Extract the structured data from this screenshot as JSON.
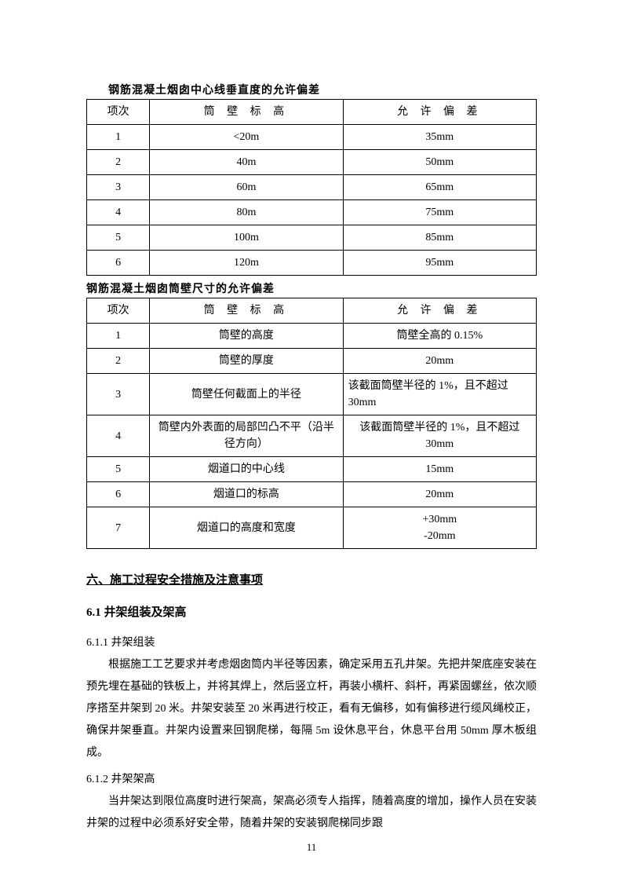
{
  "table1": {
    "title": "钢筋混凝土烟囱中心线垂直度的允许偏差",
    "columns": [
      "项次",
      "筒 壁 标 高",
      "允 许 偏 差"
    ],
    "rows": [
      [
        "1",
        "<20m",
        "35mm"
      ],
      [
        "2",
        "40m",
        "50mm"
      ],
      [
        "3",
        "60m",
        "65mm"
      ],
      [
        "4",
        "80m",
        "75mm"
      ],
      [
        "5",
        "100m",
        "85mm"
      ],
      [
        "6",
        "120m",
        "95mm"
      ]
    ],
    "col_widths_pct": [
      14,
      43,
      43
    ],
    "border_color": "#000000",
    "font_size_pt": 11
  },
  "table2": {
    "title": "钢筋混凝土烟囱筒壁尺寸的允许偏差",
    "columns": [
      "项次",
      "筒 壁 标 高",
      "允 许 偏 差"
    ],
    "rows": [
      {
        "idx": "1",
        "item": "筒壁的高度",
        "tol": "筒壁全高的 0.15%"
      },
      {
        "idx": "2",
        "item": "筒壁的厚度",
        "tol": "20mm"
      },
      {
        "idx": "3",
        "item": "筒壁任何截面上的半径",
        "tol": "该截面筒壁半径的 1%，且不超过30mm",
        "tol_align": "left"
      },
      {
        "idx": "4",
        "item": "筒壁内外表面的局部凹凸不平（沿半径方向）",
        "tol": "该截面筒壁半径的 1%，且不超过 30mm"
      },
      {
        "idx": "5",
        "item": "烟道口的中心线",
        "tol": "15mm"
      },
      {
        "idx": "6",
        "item": "烟道口的标高",
        "tol": "20mm"
      },
      {
        "idx": "7",
        "item": "烟道口的高度和宽度",
        "tol": "+30mm\n-20mm"
      }
    ],
    "col_widths_pct": [
      14,
      43,
      43
    ],
    "border_color": "#000000",
    "font_size_pt": 11
  },
  "section6": {
    "title": "六、施工过程安全措施及注意事项",
    "s6_1": {
      "heading": "6.1 井架组装及架高",
      "s6_1_1": {
        "label": "6.1.1 井架组装",
        "text": "根据施工工艺要求并考虑烟囱筒内半径等因素，确定采用五孔井架。先把井架底座安装在预先埋在基础的铁板上，并将其焊上，然后竖立杆，再装小横杆、斜杆，再紧固螺丝，依次顺序搭至井架到 20 米。井架安装至 20 米再进行校正，看有无偏移，如有偏移进行缆风绳校正，确保井架垂直。井架内设置来回钢爬梯，每隔 5m 设休息平台，休息平台用 50mm 厚木板组成。"
      },
      "s6_1_2": {
        "label": "6.1.2 井架架高",
        "text": "当井架达到限位高度时进行架高，架高必须专人指挥，随着高度的增加，操作人员在安装井架的过程中必须系好安全带，随着井架的安装钢爬梯同步跟"
      }
    }
  },
  "page_number": "11",
  "page_background": "#ffffff",
  "text_color": "#000000"
}
